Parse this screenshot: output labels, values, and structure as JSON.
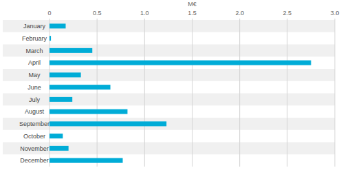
{
  "chart_data": {
    "type": "bar",
    "orientation": "horizontal",
    "xlabel": "M€",
    "categories": [
      "January",
      "February",
      "March",
      "April",
      "May",
      "June",
      "July",
      "August",
      "September",
      "October",
      "November",
      "December"
    ],
    "values": [
      0.17,
      0.015,
      0.45,
      2.75,
      0.33,
      0.64,
      0.24,
      0.82,
      1.23,
      0.14,
      0.2,
      0.77
    ],
    "color": "#00acd7",
    "xlim": [
      0,
      3
    ],
    "xticks": [
      0,
      0.5,
      {
        "value": 1,
        "label": "1.0"
      },
      1.5,
      {
        "value": 2,
        "label": "2.0"
      },
      2.5,
      {
        "value": 3,
        "label": "3.0"
      }
    ],
    "grid": true
  }
}
